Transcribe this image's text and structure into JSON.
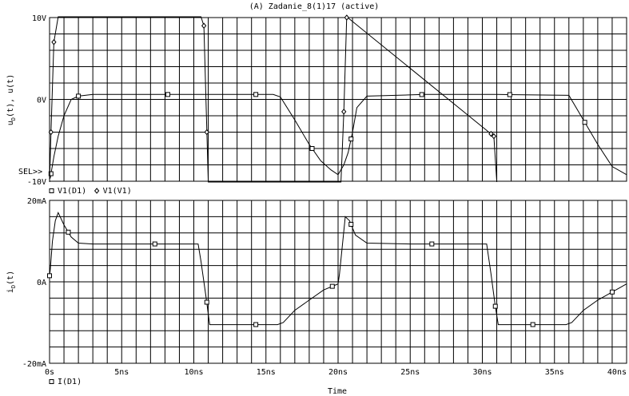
{
  "window": {
    "title": "(A) Zadanie_8(1)17 (active)"
  },
  "chart_data": [
    {
      "type": "line",
      "ylabel": "uD(t), u(t)",
      "ylabel_base": "u",
      "ylabel_sub": "D",
      "ylabel_rest": "(t), u(t)",
      "ylim": [
        -10,
        10
      ],
      "yticks": [
        {
          "v": 10,
          "label": "10V"
        },
        {
          "v": 0,
          "label": "0V"
        },
        {
          "v": -10,
          "label": "-10V"
        }
      ],
      "sel_marker": "SEL>>",
      "grid": true,
      "legend": [
        {
          "marker": "square",
          "name": "V1(D1)"
        },
        {
          "marker": "diamond",
          "name": "V1(V1)"
        }
      ],
      "series": [
        {
          "name": "V1(D1)",
          "marker": "square",
          "x": [
            0,
            0.05,
            0.3,
            0.6,
            1.0,
            1.5,
            2.0,
            3,
            8,
            14,
            15.5,
            16,
            17,
            18,
            18.8,
            19.5,
            20,
            20.4,
            20.7,
            21.0,
            21.3,
            22,
            26,
            30,
            31,
            36,
            37,
            38,
            39,
            40
          ],
          "y": [
            -9.7,
            -9.6,
            -7.0,
            -4.5,
            -2.0,
            0.0,
            0.4,
            0.6,
            0.6,
            0.6,
            0.6,
            0.3,
            -2.5,
            -5.5,
            -7.5,
            -8.6,
            -9.2,
            -8.0,
            -6.5,
            -4.0,
            -1.0,
            0.4,
            0.6,
            0.6,
            0.6,
            0.5,
            -2.5,
            -5.5,
            -8.2,
            -9.2
          ],
          "markers_at": [
            0.1,
            2.0,
            8.2,
            14.3,
            18.2,
            20.9,
            25.8,
            31.9,
            37.1
          ]
        },
        {
          "name": "V1(V1)",
          "marker": "diamond",
          "x": [
            0.0,
            0.1,
            0.3,
            0.6,
            10.5,
            10.7,
            11.0,
            20.2,
            20.4,
            20.6,
            30.8,
            31.0
          ],
          "y": [
            -10.5,
            -4.0,
            7.0,
            10.5,
            10.5,
            9.0,
            -10.5,
            -10.5,
            -1.5,
            10.5,
            -4.5,
            -10.5
          ],
          "markers_at": [
            0.1,
            0.3,
            10.7,
            10.9,
            20.4,
            20.6,
            30.6,
            30.8
          ]
        }
      ]
    },
    {
      "type": "line",
      "ylabel": "iD(t)",
      "ylabel_base": "i",
      "ylabel_sub": "D",
      "ylabel_rest": "(t)",
      "xlabel": "Time",
      "ylim": [
        -20,
        20
      ],
      "yticks": [
        {
          "v": 20,
          "label": "20mA"
        },
        {
          "v": 0,
          "label": "0A"
        },
        {
          "v": -20,
          "label": "-20mA"
        }
      ],
      "xlim": [
        0,
        40
      ],
      "xticks": [
        {
          "v": 0,
          "label": "0s"
        },
        {
          "v": 5,
          "label": "5ns"
        },
        {
          "v": 10,
          "label": "10ns"
        },
        {
          "v": 15,
          "label": "15ns"
        },
        {
          "v": 20,
          "label": "20ns"
        },
        {
          "v": 25,
          "label": "25ns"
        },
        {
          "v": 30,
          "label": "30ns"
        },
        {
          "v": 35,
          "label": "35ns"
        },
        {
          "v": 40,
          "label": "40ns"
        }
      ],
      "grid": true,
      "legend": [
        {
          "marker": "square",
          "name": "I(D1)"
        }
      ],
      "series": [
        {
          "name": "I(D1)",
          "marker": "square",
          "x": [
            0,
            0.05,
            0.2,
            0.4,
            0.6,
            1.0,
            1.5,
            2.0,
            3.0,
            5,
            10.3,
            10.5,
            10.7,
            10.9,
            11.0,
            11.1,
            15.8,
            16.2,
            17,
            18,
            19,
            20,
            20.1,
            20.3,
            20.5,
            20.8,
            21.2,
            22,
            25,
            30.3,
            30.6,
            30.9,
            31.1,
            35.8,
            36.2,
            37,
            38,
            39,
            40
          ],
          "y": [
            1.5,
            3.0,
            10.0,
            15.0,
            17.0,
            14.0,
            11.0,
            9.5,
            9.3,
            9.3,
            9.3,
            5.0,
            0.0,
            -5.0,
            -8.0,
            -10.5,
            -10.5,
            -10.0,
            -7.0,
            -4.5,
            -2.0,
            -0.5,
            2.0,
            9.0,
            16.0,
            15.0,
            11.5,
            9.5,
            9.3,
            9.3,
            2.0,
            -6.0,
            -10.5,
            -10.5,
            -10.0,
            -7.0,
            -4.5,
            -2.5,
            -0.5
          ],
          "markers_at": [
            0.0,
            1.3,
            7.3,
            10.9,
            14.3,
            19.6,
            20.9,
            26.5,
            30.9,
            33.5,
            39.0
          ]
        }
      ]
    }
  ]
}
